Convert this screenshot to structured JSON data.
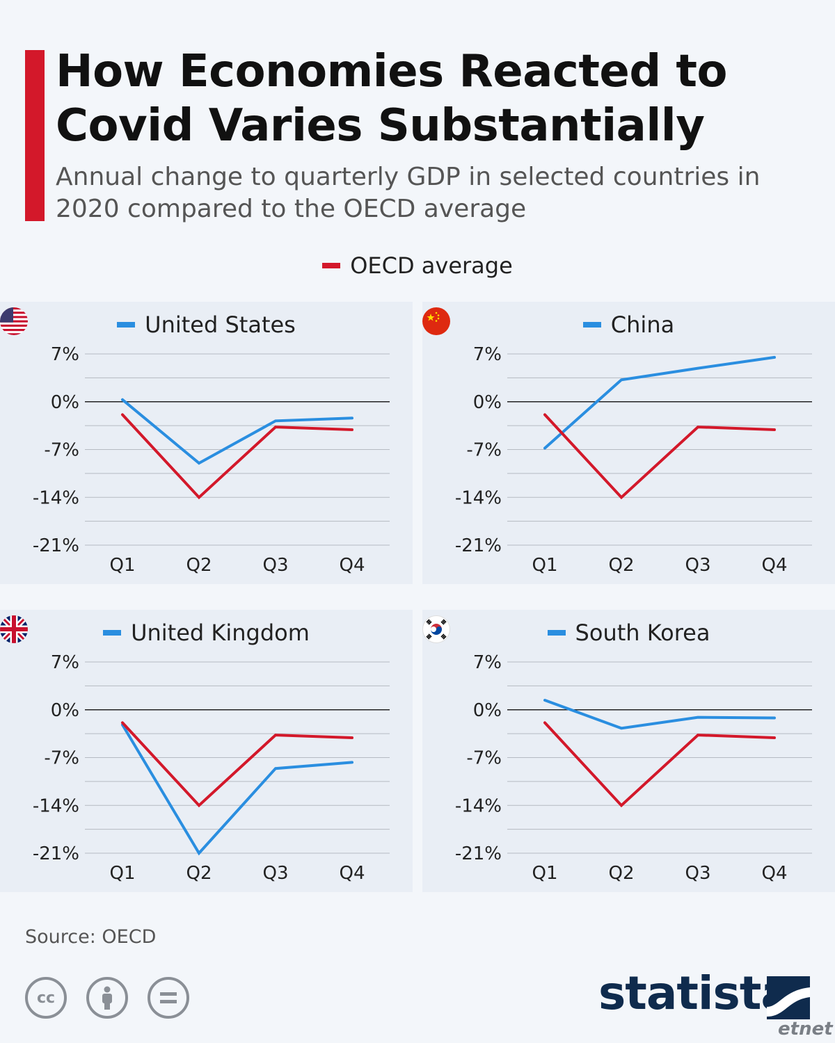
{
  "header": {
    "title": "How Economies Reacted to Covid Varies Substantially",
    "subtitle": "Annual change to quarterly GDP in selected countries in 2020 compared to the OECD average"
  },
  "legend": {
    "label": "OECD average"
  },
  "colors": {
    "accent": "#d3182a",
    "oecd": "#d3182a",
    "country": "#2a8ee0",
    "brand": "#0f2b4d"
  },
  "footer": {
    "source": "Source: OECD",
    "brand": "statista",
    "watermark": "etnet"
  },
  "chart_data": [
    {
      "type": "line",
      "title": "United States",
      "flag_icon": "us-flag-icon",
      "categories": [
        "Q1",
        "Q2",
        "Q3",
        "Q4"
      ],
      "series": [
        {
          "name": "United States",
          "values": [
            0.3,
            -9.0,
            -2.8,
            -2.4
          ]
        },
        {
          "name": "OECD average",
          "values": [
            -1.9,
            -14.0,
            -3.7,
            -4.1
          ]
        }
      ],
      "yticks": [
        "7%",
        "0%",
        "-7%",
        "-14%",
        "-21%"
      ],
      "ylim": [
        -21,
        7
      ]
    },
    {
      "type": "line",
      "title": "China",
      "flag_icon": "china-flag-icon",
      "categories": [
        "Q1",
        "Q2",
        "Q3",
        "Q4"
      ],
      "series": [
        {
          "name": "China",
          "values": [
            -6.8,
            3.2,
            4.9,
            6.5
          ]
        },
        {
          "name": "OECD average",
          "values": [
            -1.9,
            -14.0,
            -3.7,
            -4.1
          ]
        }
      ],
      "yticks": [
        "7%",
        "0%",
        "-7%",
        "-14%",
        "-21%"
      ],
      "ylim": [
        -21,
        7
      ]
    },
    {
      "type": "line",
      "title": "United Kingdom",
      "flag_icon": "uk-flag-icon",
      "categories": [
        "Q1",
        "Q2",
        "Q3",
        "Q4"
      ],
      "series": [
        {
          "name": "United Kingdom",
          "values": [
            -2.2,
            -21.0,
            -8.6,
            -7.7
          ]
        },
        {
          "name": "OECD average",
          "values": [
            -1.9,
            -14.0,
            -3.7,
            -4.1
          ]
        }
      ],
      "yticks": [
        "7%",
        "0%",
        "-7%",
        "-14%",
        "-21%"
      ],
      "ylim": [
        -21,
        7
      ]
    },
    {
      "type": "line",
      "title": "South Korea",
      "flag_icon": "south-korea-flag-icon",
      "categories": [
        "Q1",
        "Q2",
        "Q3",
        "Q4"
      ],
      "series": [
        {
          "name": "South Korea",
          "values": [
            1.4,
            -2.7,
            -1.1,
            -1.2
          ]
        },
        {
          "name": "OECD average",
          "values": [
            -1.9,
            -14.0,
            -3.7,
            -4.1
          ]
        }
      ],
      "yticks": [
        "7%",
        "0%",
        "-7%",
        "-14%",
        "-21%"
      ],
      "ylim": [
        -21,
        7
      ]
    }
  ]
}
